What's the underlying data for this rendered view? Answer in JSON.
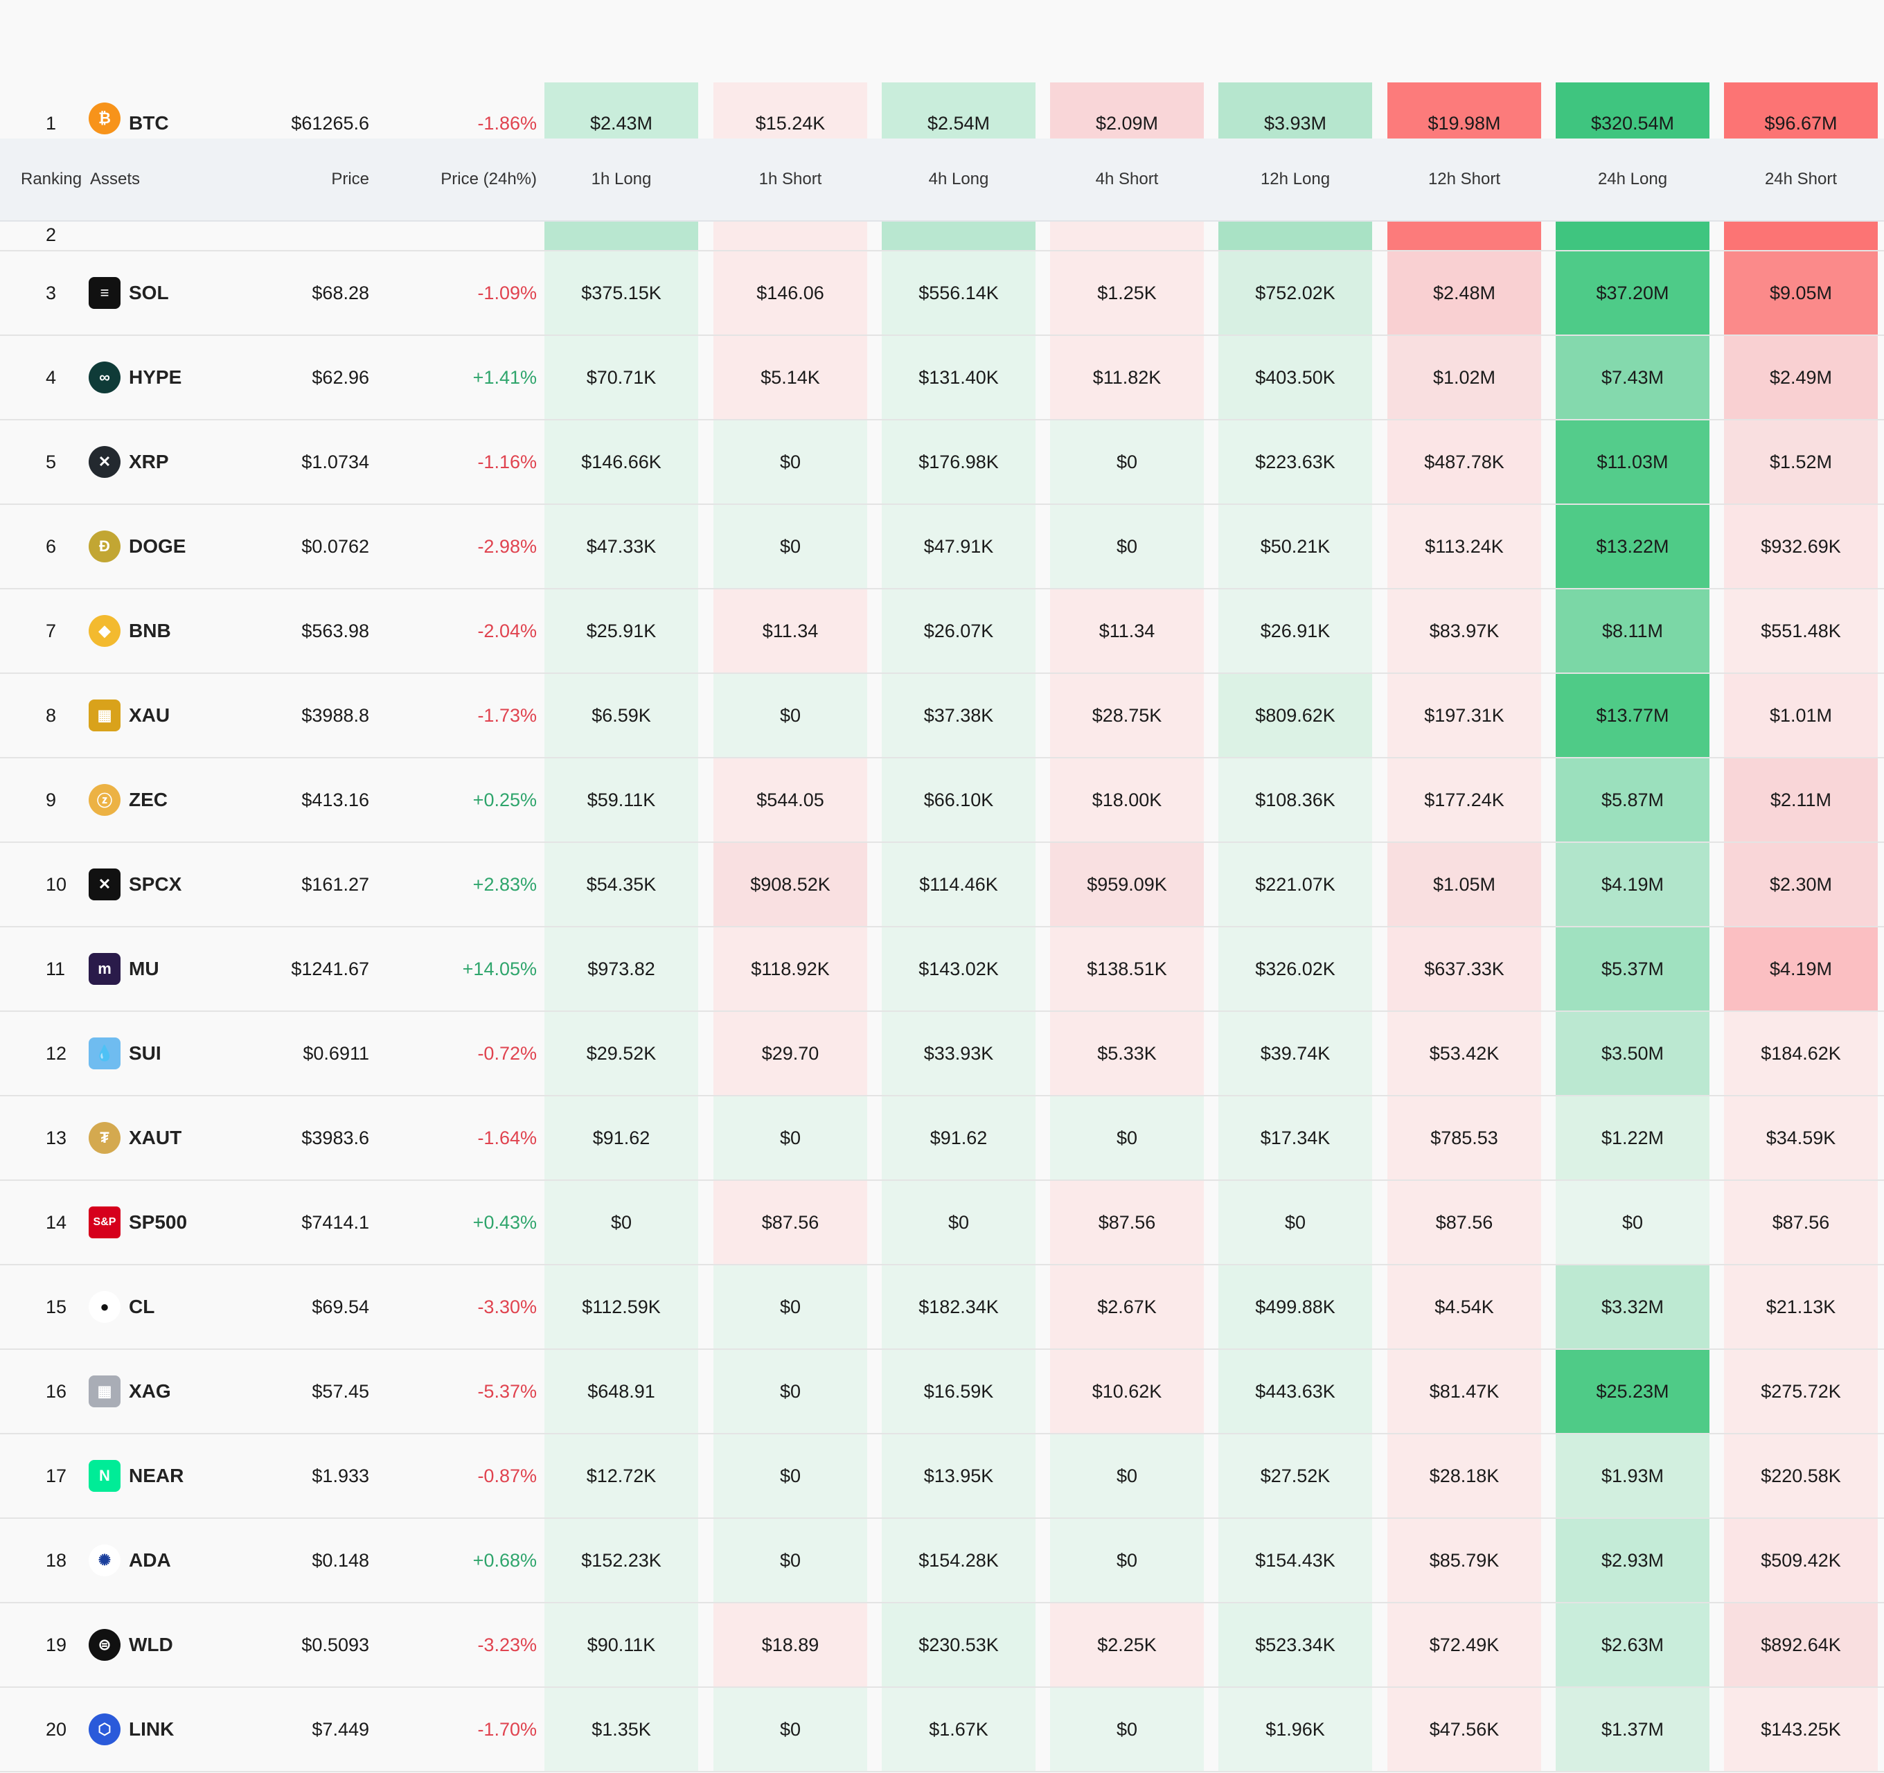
{
  "header": {
    "ranking": "Ranking",
    "assets": "Assets",
    "price": "Price",
    "change": "Price (24h%)",
    "cols": [
      "1h Long",
      "1h Short",
      "4h Long",
      "4h Short",
      "12h Long",
      "12h Short",
      "24h Long",
      "24h Short"
    ]
  },
  "colors": {
    "up": "#2fa56c",
    "down": "#e0434f"
  },
  "rows": [
    {
      "rank": "1",
      "sym": "BTC",
      "icon": "bitcoin-icon",
      "logo_color": "#f7931a",
      "glyph": "₿",
      "price": "$61265.6",
      "chg": "-1.86%",
      "dir": "down",
      "vals": [
        "$2.43M",
        "$15.24K",
        "$2.54M",
        "$2.09M",
        "$3.93M",
        "$19.98M",
        "$320.54M",
        "$96.67M"
      ],
      "shade": [
        "#c9eddb",
        "#fbeaea",
        "#c9eddb",
        "#f9d6d8",
        "#b6e6ce",
        "#fc7b7b",
        "#3fc57f",
        "#fc7474"
      ]
    },
    {
      "rank": "2",
      "sym": "",
      "icon": "",
      "logo_color": "#ffffff",
      "glyph": "",
      "price": "",
      "chg": "",
      "dir": "down",
      "vals": [
        "",
        "",
        "",
        "",
        "",
        "",
        "",
        ""
      ],
      "shade": [
        "#b9e7d0",
        "#fbeaea",
        "#b9e7d0",
        "#fbeaea",
        "#a9e2c5",
        "#fc7b7b",
        "#3fc57f",
        "#fc7474"
      ]
    },
    {
      "rank": "3",
      "sym": "SOL",
      "icon": "solana-icon",
      "logo_color": "#111111",
      "glyph": "≡",
      "price": "$68.28",
      "chg": "-1.09%",
      "dir": "down",
      "vals": [
        "$375.15K",
        "$146.06",
        "$556.14K",
        "$1.25K",
        "$752.02K",
        "$2.48M",
        "$37.20M",
        "$9.05M"
      ],
      "shade": [
        "#e3f4eb",
        "#fbeaea",
        "#e3f4eb",
        "#fbeaea",
        "#d8f0e3",
        "#f9d0d2",
        "#4ecb88",
        "#fb8a8a"
      ]
    },
    {
      "rank": "4",
      "sym": "HYPE",
      "icon": "hyperliquid-icon",
      "logo_color": "#0f3b38",
      "glyph": "∞",
      "price": "$62.96",
      "chg": "+1.41%",
      "dir": "up",
      "vals": [
        "$70.71K",
        "$5.14K",
        "$131.40K",
        "$11.82K",
        "$403.50K",
        "$1.02M",
        "$7.43M",
        "$2.49M"
      ],
      "shade": [
        "#e6f5ed",
        "#fbeaea",
        "#e6f5ed",
        "#fbeaea",
        "#e1f3e9",
        "#f9dfe0",
        "#84d9ad",
        "#f9d0d2"
      ]
    },
    {
      "rank": "5",
      "sym": "XRP",
      "icon": "xrp-icon",
      "logo_color": "#23292f",
      "glyph": "✕",
      "price": "$1.0734",
      "chg": "-1.16%",
      "dir": "down",
      "vals": [
        "$146.66K",
        "$0",
        "$176.98K",
        "$0",
        "$223.63K",
        "$487.78K",
        "$11.03M",
        "$1.52M"
      ],
      "shade": [
        "#e6f5ed",
        "#e8f5ee",
        "#e6f5ed",
        "#e8f5ee",
        "#e6f5ed",
        "#fbe5e6",
        "#54cc8b",
        "#f9dfe0"
      ]
    },
    {
      "rank": "6",
      "sym": "DOGE",
      "icon": "dogecoin-icon",
      "logo_color": "#c2a633",
      "glyph": "Ð",
      "price": "$0.0762",
      "chg": "-2.98%",
      "dir": "down",
      "vals": [
        "$47.33K",
        "$0",
        "$47.91K",
        "$0",
        "$50.21K",
        "$113.24K",
        "$13.22M",
        "$932.69K"
      ],
      "shade": [
        "#e8f5ee",
        "#e8f5ee",
        "#e8f5ee",
        "#e8f5ee",
        "#e8f5ee",
        "#fbeaea",
        "#4fcb87",
        "#fbe5e6"
      ]
    },
    {
      "rank": "7",
      "sym": "BNB",
      "icon": "bnb-icon",
      "logo_color": "#f3ba2f",
      "glyph": "◆",
      "price": "$563.98",
      "chg": "-2.04%",
      "dir": "down",
      "vals": [
        "$25.91K",
        "$11.34",
        "$26.07K",
        "$11.34",
        "$26.91K",
        "$83.97K",
        "$8.11M",
        "$551.48K"
      ],
      "shade": [
        "#e8f5ee",
        "#fbeaea",
        "#e8f5ee",
        "#fbeaea",
        "#e8f5ee",
        "#fbeaea",
        "#7bd7a6",
        "#fbeaea"
      ]
    },
    {
      "rank": "8",
      "sym": "XAU",
      "icon": "gold-bars-icon",
      "logo_color": "#d9a21b",
      "glyph": "▦",
      "price": "$3988.8",
      "chg": "-1.73%",
      "dir": "down",
      "vals": [
        "$6.59K",
        "$0",
        "$37.38K",
        "$28.75K",
        "$809.62K",
        "$197.31K",
        "$13.77M",
        "$1.01M"
      ],
      "shade": [
        "#e8f5ee",
        "#e8f5ee",
        "#e8f5ee",
        "#fbeaea",
        "#dcf2e5",
        "#fbeaea",
        "#4fcb87",
        "#fbe5e6"
      ]
    },
    {
      "rank": "9",
      "sym": "ZEC",
      "icon": "zcash-icon",
      "logo_color": "#ecb244",
      "glyph": "ⓩ",
      "price": "$413.16",
      "chg": "+0.25%",
      "dir": "up",
      "vals": [
        "$59.11K",
        "$544.05",
        "$66.10K",
        "$18.00K",
        "$108.36K",
        "$177.24K",
        "$5.87M",
        "$2.11M"
      ],
      "shade": [
        "#e8f5ee",
        "#fbeaea",
        "#e8f5ee",
        "#fbeaea",
        "#e8f5ee",
        "#fbeaea",
        "#9be0bd",
        "#f9d6d8"
      ]
    },
    {
      "rank": "10",
      "sym": "SPCX",
      "icon": "spacex-icon",
      "logo_color": "#111111",
      "glyph": "✕",
      "price": "$161.27",
      "chg": "+2.83%",
      "dir": "up",
      "vals": [
        "$54.35K",
        "$908.52K",
        "$114.46K",
        "$959.09K",
        "$221.07K",
        "$1.05M",
        "$4.19M",
        "$2.30M"
      ],
      "shade": [
        "#e8f5ee",
        "#f9e0e1",
        "#e8f5ee",
        "#f9e0e1",
        "#e8f5ee",
        "#f9dfe0",
        "#b1e5cb",
        "#f9d6d8"
      ]
    },
    {
      "rank": "11",
      "sym": "MU",
      "icon": "micron-icon",
      "logo_color": "#2a1b4a",
      "glyph": "m",
      "price": "$1241.67",
      "chg": "+14.05%",
      "dir": "up",
      "vals": [
        "$973.82",
        "$118.92K",
        "$143.02K",
        "$138.51K",
        "$326.02K",
        "$637.33K",
        "$5.37M",
        "$4.19M"
      ],
      "shade": [
        "#e8f5ee",
        "#fbeaea",
        "#e8f5ee",
        "#fbeaea",
        "#e8f5ee",
        "#fbe5e6",
        "#a0e1c0",
        "#fbbfc2"
      ]
    },
    {
      "rank": "12",
      "sym": "SUI",
      "icon": "sui-icon",
      "logo_color": "#6fbcf0",
      "glyph": "💧",
      "price": "$0.6911",
      "chg": "-0.72%",
      "dir": "down",
      "vals": [
        "$29.52K",
        "$29.70",
        "$33.93K",
        "$5.33K",
        "$39.74K",
        "$53.42K",
        "$3.50M",
        "$184.62K"
      ],
      "shade": [
        "#e8f5ee",
        "#fbeaea",
        "#e8f5ee",
        "#fbeaea",
        "#e8f5ee",
        "#fbeaea",
        "#bbe8d1",
        "#fbeaea"
      ]
    },
    {
      "rank": "13",
      "sym": "XAUT",
      "icon": "tether-gold-icon",
      "logo_color": "#d4a94f",
      "glyph": "₮",
      "price": "$3983.6",
      "chg": "-1.64%",
      "dir": "down",
      "vals": [
        "$91.62",
        "$0",
        "$91.62",
        "$0",
        "$17.34K",
        "$785.53",
        "$1.22M",
        "$34.59K"
      ],
      "shade": [
        "#e8f5ee",
        "#e8f5ee",
        "#e8f5ee",
        "#e8f5ee",
        "#e8f5ee",
        "#fbeaea",
        "#dcf2e5",
        "#fbeaea"
      ]
    },
    {
      "rank": "14",
      "sym": "SP500",
      "icon": "sp500-icon",
      "logo_color": "#d6001c",
      "glyph": "S&P",
      "price": "$7414.1",
      "chg": "+0.43%",
      "dir": "up",
      "vals": [
        "$0",
        "$87.56",
        "$0",
        "$87.56",
        "$0",
        "$87.56",
        "$0",
        "$87.56"
      ],
      "shade": [
        "#e8f5ee",
        "#fbeaea",
        "#e8f5ee",
        "#fbeaea",
        "#e8f5ee",
        "#fbeaea",
        "#e8f5ee",
        "#fbeaea"
      ]
    },
    {
      "rank": "15",
      "sym": "CL",
      "icon": "oil-drop-icon",
      "logo_color": "#ffffff",
      "glyph": "●",
      "price": "$69.54",
      "chg": "-3.30%",
      "dir": "down",
      "vals": [
        "$112.59K",
        "$0",
        "$182.34K",
        "$2.67K",
        "$499.88K",
        "$4.54K",
        "$3.32M",
        "$21.13K"
      ],
      "shade": [
        "#e8f5ee",
        "#e8f5ee",
        "#e8f5ee",
        "#fbeaea",
        "#e3f4eb",
        "#fbeaea",
        "#bde9d2",
        "#fbeaea"
      ]
    },
    {
      "rank": "16",
      "sym": "XAG",
      "icon": "silver-bars-icon",
      "logo_color": "#a9adb6",
      "glyph": "▦",
      "price": "$57.45",
      "chg": "-5.37%",
      "dir": "down",
      "vals": [
        "$648.91",
        "$0",
        "$16.59K",
        "$10.62K",
        "$443.63K",
        "$81.47K",
        "$25.23M",
        "$275.72K"
      ],
      "shade": [
        "#e8f5ee",
        "#e8f5ee",
        "#e8f5ee",
        "#fbeaea",
        "#e3f4eb",
        "#fbeaea",
        "#4fcb87",
        "#fbeaea"
      ]
    },
    {
      "rank": "17",
      "sym": "NEAR",
      "icon": "near-icon",
      "logo_color": "#00ec97",
      "glyph": "N",
      "price": "$1.933",
      "chg": "-0.87%",
      "dir": "down",
      "vals": [
        "$12.72K",
        "$0",
        "$13.95K",
        "$0",
        "$27.52K",
        "$28.18K",
        "$1.93M",
        "$220.58K"
      ],
      "shade": [
        "#e8f5ee",
        "#e8f5ee",
        "#e8f5ee",
        "#e8f5ee",
        "#e8f5ee",
        "#fbeaea",
        "#d2efdf",
        "#fbeaea"
      ]
    },
    {
      "rank": "18",
      "sym": "ADA",
      "icon": "cardano-icon",
      "logo_color": "#ffffff",
      "glyph": "✺",
      "price": "$0.148",
      "chg": "+0.68%",
      "dir": "up",
      "vals": [
        "$152.23K",
        "$0",
        "$154.28K",
        "$0",
        "$154.43K",
        "$85.79K",
        "$2.93M",
        "$509.42K"
      ],
      "shade": [
        "#e8f5ee",
        "#e8f5ee",
        "#e8f5ee",
        "#e8f5ee",
        "#e8f5ee",
        "#fbeaea",
        "#c4ebd7",
        "#fbe5e6"
      ]
    },
    {
      "rank": "19",
      "sym": "WLD",
      "icon": "worldcoin-icon",
      "logo_color": "#111111",
      "glyph": "⊜",
      "price": "$0.5093",
      "chg": "-3.23%",
      "dir": "down",
      "vals": [
        "$90.11K",
        "$18.89",
        "$230.53K",
        "$2.25K",
        "$523.34K",
        "$72.49K",
        "$2.63M",
        "$892.64K"
      ],
      "shade": [
        "#e8f5ee",
        "#fbeaea",
        "#e3f4eb",
        "#fbeaea",
        "#e3f4eb",
        "#fbeaea",
        "#c9eddb",
        "#f9dfe0"
      ]
    },
    {
      "rank": "20",
      "sym": "LINK",
      "icon": "chainlink-icon",
      "logo_color": "#2a5ada",
      "glyph": "⬡",
      "price": "$7.449",
      "chg": "-1.70%",
      "dir": "down",
      "vals": [
        "$1.35K",
        "$0",
        "$1.67K",
        "$0",
        "$1.96K",
        "$47.56K",
        "$1.37M",
        "$143.25K"
      ],
      "shade": [
        "#e8f5ee",
        "#e8f5ee",
        "#e8f5ee",
        "#e8f5ee",
        "#e8f5ee",
        "#fbeaea",
        "#d8f0e3",
        "#fbeaea"
      ]
    }
  ]
}
